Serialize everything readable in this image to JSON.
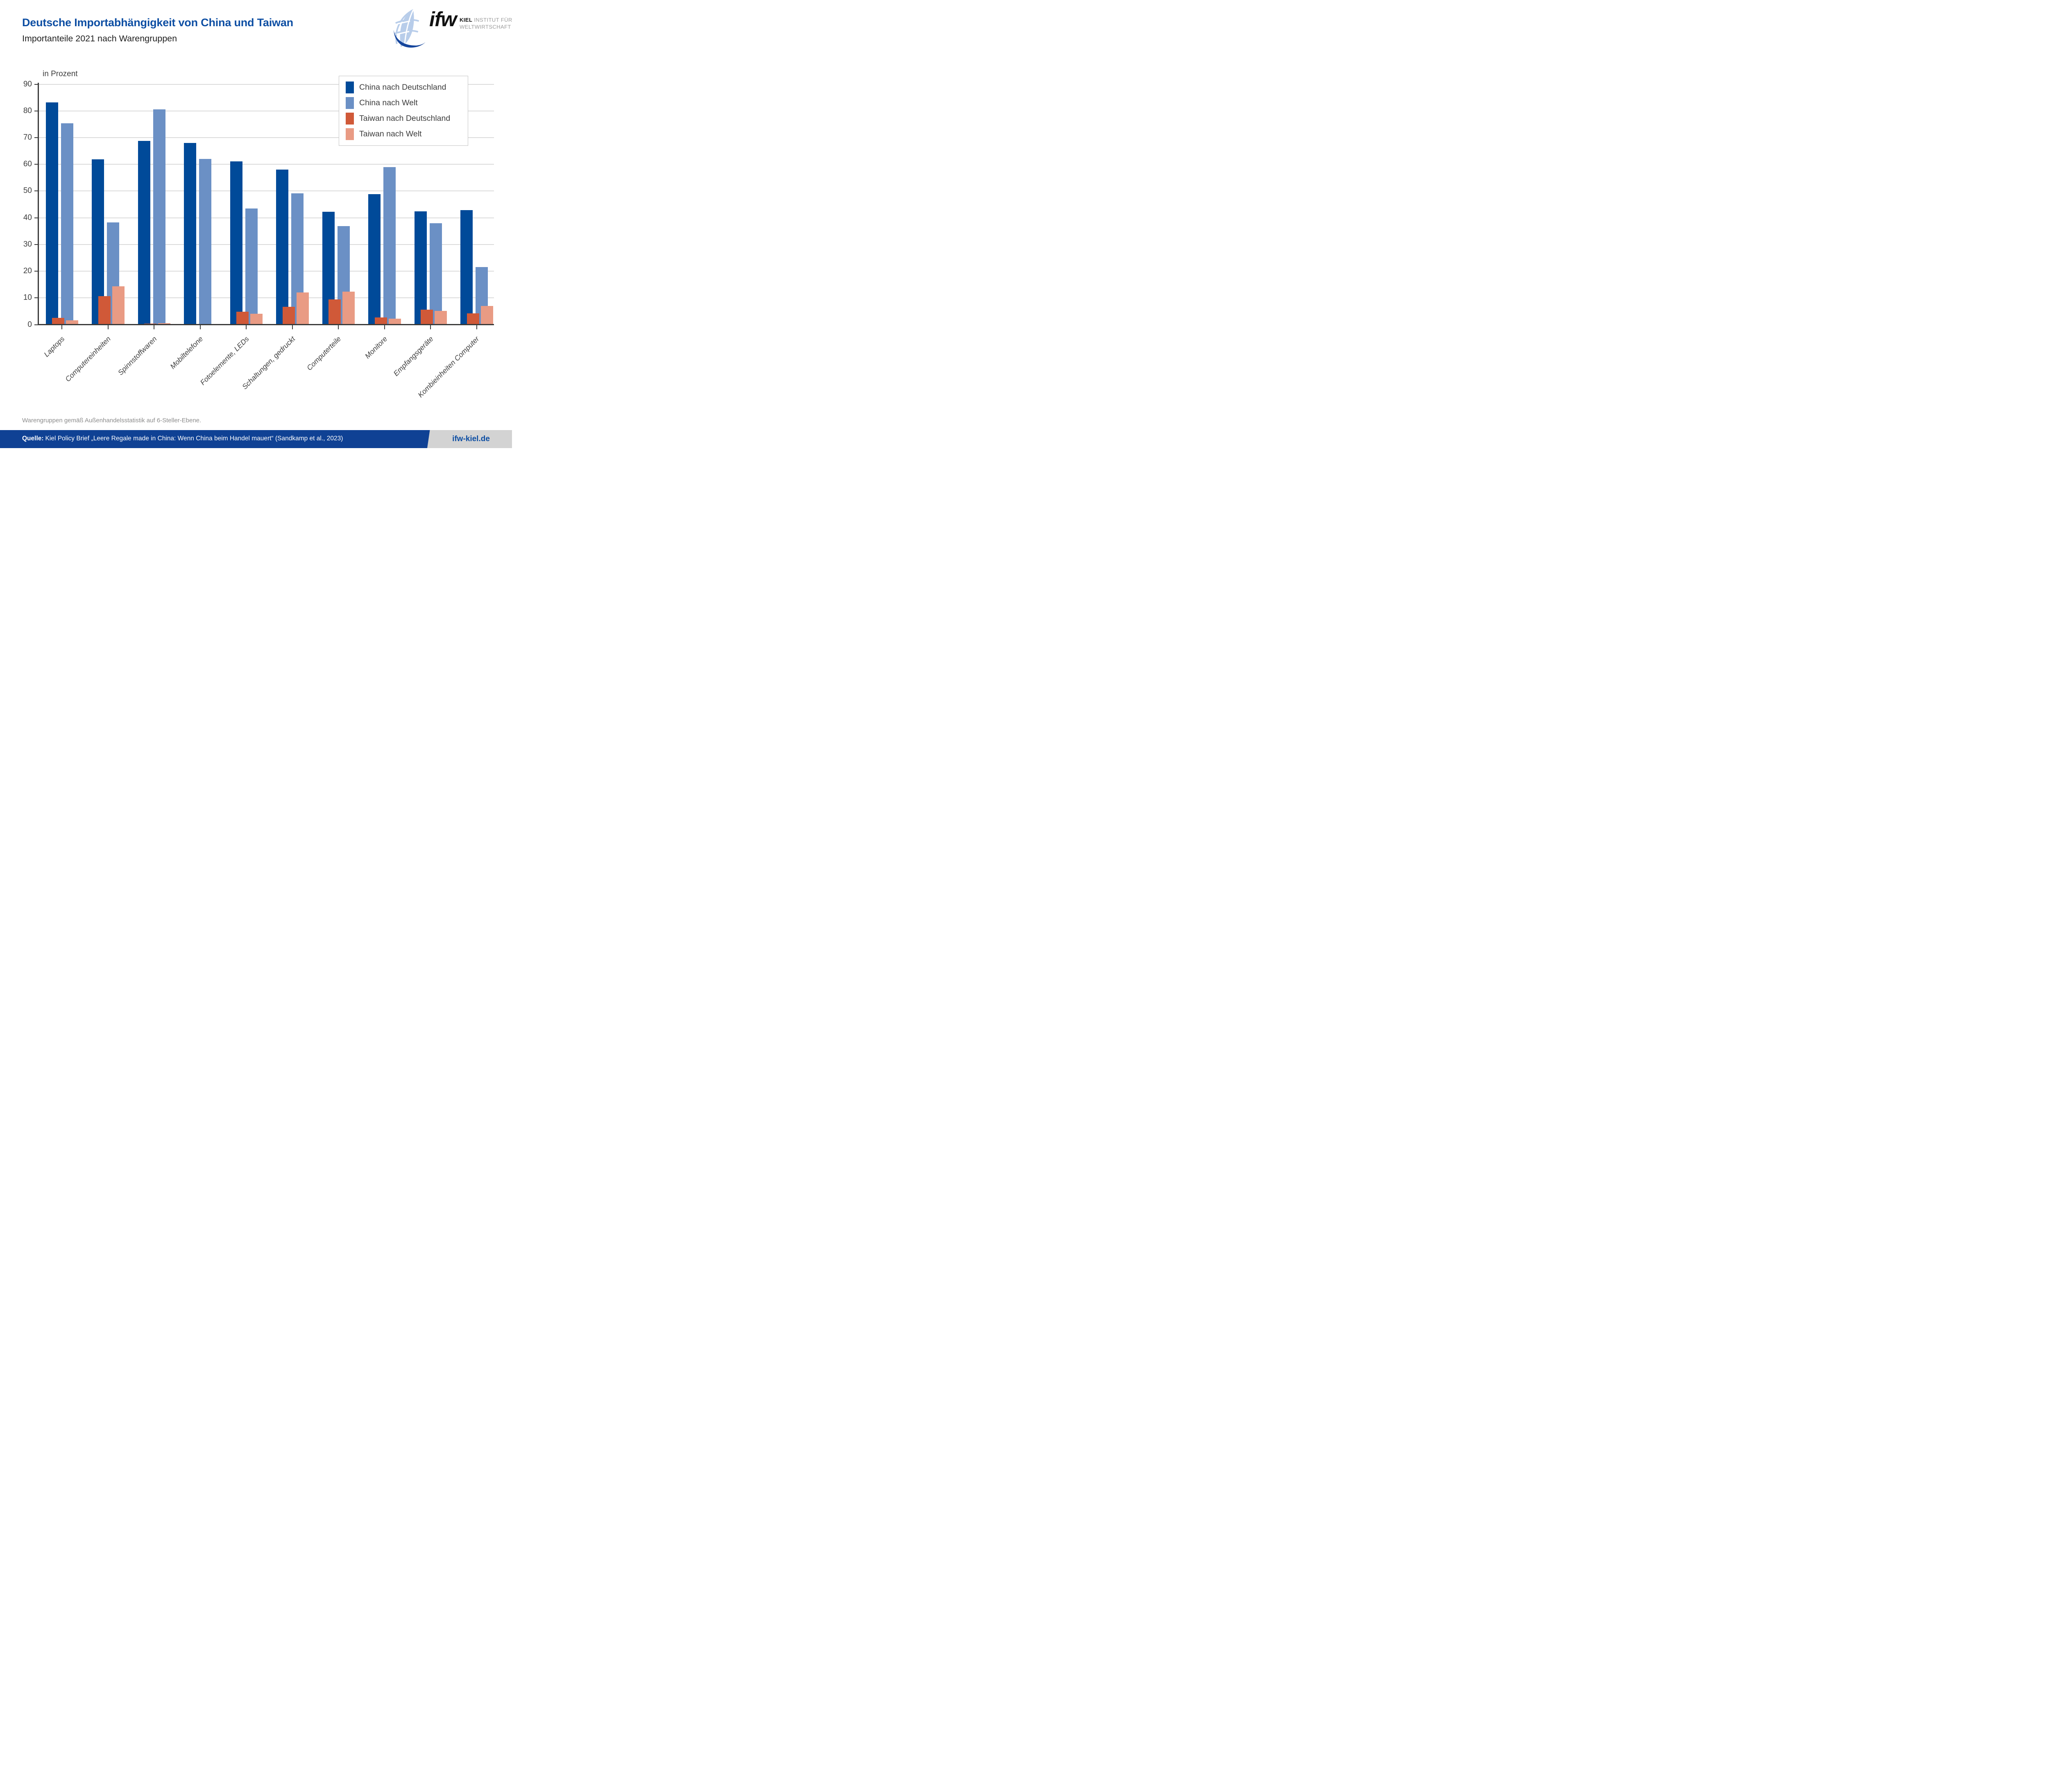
{
  "header": {
    "title": "Deutsche Importabhängigkeit von China und Taiwan",
    "subtitle": "Importanteile 2021 nach Warengruppen"
  },
  "logo": {
    "wordmark": "ifw",
    "line1_bold": "KIEL",
    "line1_rest": " INSTITUT FÜR",
    "line2": "WELTWIRTSCHAFT"
  },
  "chart_data": {
    "type": "bar",
    "title": "Importanteile 2021 nach Warengruppen",
    "ylabel": "in Prozent",
    "ylim": [
      0,
      90
    ],
    "yticks": [
      0,
      10,
      20,
      30,
      40,
      50,
      60,
      70,
      80,
      90
    ],
    "grid": true,
    "legend_position": "top-right",
    "categories": [
      "Laptops",
      "Computereinheiten",
      "Spinnstoffwaren",
      "Mobiltelefone",
      "Fotoelemente, LEDs",
      "Schaltungen, gedruckt",
      "Computerteile",
      "Monitore",
      "Empfangsgeräte",
      "Kombieinheiten Computer"
    ],
    "series": [
      {
        "name": "China nach Deutschland",
        "color": "#004a99",
        "values": [
          83.2,
          61.9,
          68.8,
          68.0,
          61.1,
          58.0,
          42.2,
          48.9,
          42.4,
          42.9
        ]
      },
      {
        "name": "China nach Welt",
        "color": "#6b90c5",
        "values": [
          75.3,
          38.2,
          80.6,
          62.0,
          43.4,
          49.1,
          36.9,
          58.9,
          38.0,
          21.5
        ]
      },
      {
        "name": "Taiwan nach Deutschland",
        "color": "#d05938",
        "values": [
          2.6,
          10.7,
          0.4,
          0.1,
          4.8,
          6.6,
          9.5,
          2.7,
          5.6,
          4.2
        ]
      },
      {
        "name": "Taiwan nach Welt",
        "color": "#e99b84",
        "values": [
          1.6,
          14.4,
          0.5,
          0.2,
          4.0,
          12.1,
          12.3,
          2.2,
          5.1,
          6.9
        ]
      }
    ]
  },
  "footnote": "Warengruppen gemäß Außenhandelsstatistik auf 6-Steller-Ebene.",
  "footer": {
    "source_label": "Quelle:",
    "source_text": "Kiel Policy Brief „Leere Regale made in China: Wenn China beim Handel mauert“ (Sandkamp et al., 2023)",
    "website": "ifw-kiel.de"
  }
}
